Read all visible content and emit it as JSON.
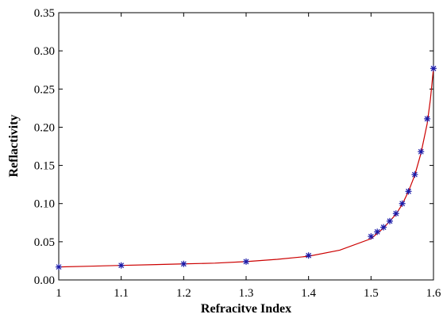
{
  "chart_data": {
    "type": "line",
    "title": "",
    "xlabel": "Refracitve Index",
    "ylabel": "Reflactivity",
    "xlim": [
      1,
      1.6
    ],
    "ylim": [
      0,
      0.35
    ],
    "xticks": [
      "1",
      "1.1",
      "1.2",
      "1.3",
      "1.4",
      "1.5",
      "1.6"
    ],
    "yticks": [
      "0.00",
      "0.05",
      "0.10",
      "0.15",
      "0.20",
      "0.25",
      "0.30",
      "0.35"
    ],
    "grid": false,
    "series": [
      {
        "style": "line",
        "color": "#cc0000",
        "x": [
          1.0,
          1.05,
          1.1,
          1.15,
          1.2,
          1.25,
          1.3,
          1.35,
          1.4,
          1.45,
          1.5,
          1.52,
          1.54,
          1.55,
          1.56,
          1.57,
          1.58,
          1.59,
          1.595,
          1.6
        ],
        "y": [
          0.017,
          0.018,
          0.019,
          0.02,
          0.021,
          0.022,
          0.024,
          0.027,
          0.031,
          0.039,
          0.054,
          0.068,
          0.086,
          0.099,
          0.116,
          0.137,
          0.166,
          0.205,
          0.236,
          0.277
        ]
      },
      {
        "style": "marker",
        "marker": "*",
        "color": "#1a1aa8",
        "x": [
          1.0,
          1.1,
          1.2,
          1.3,
          1.4,
          1.5,
          1.51,
          1.52,
          1.53,
          1.54,
          1.55,
          1.56,
          1.57,
          1.58,
          1.59,
          1.6
        ],
        "y": [
          0.017,
          0.019,
          0.021,
          0.024,
          0.032,
          0.057,
          0.063,
          0.069,
          0.077,
          0.087,
          0.1,
          0.116,
          0.138,
          0.168,
          0.211,
          0.277
        ]
      }
    ]
  }
}
